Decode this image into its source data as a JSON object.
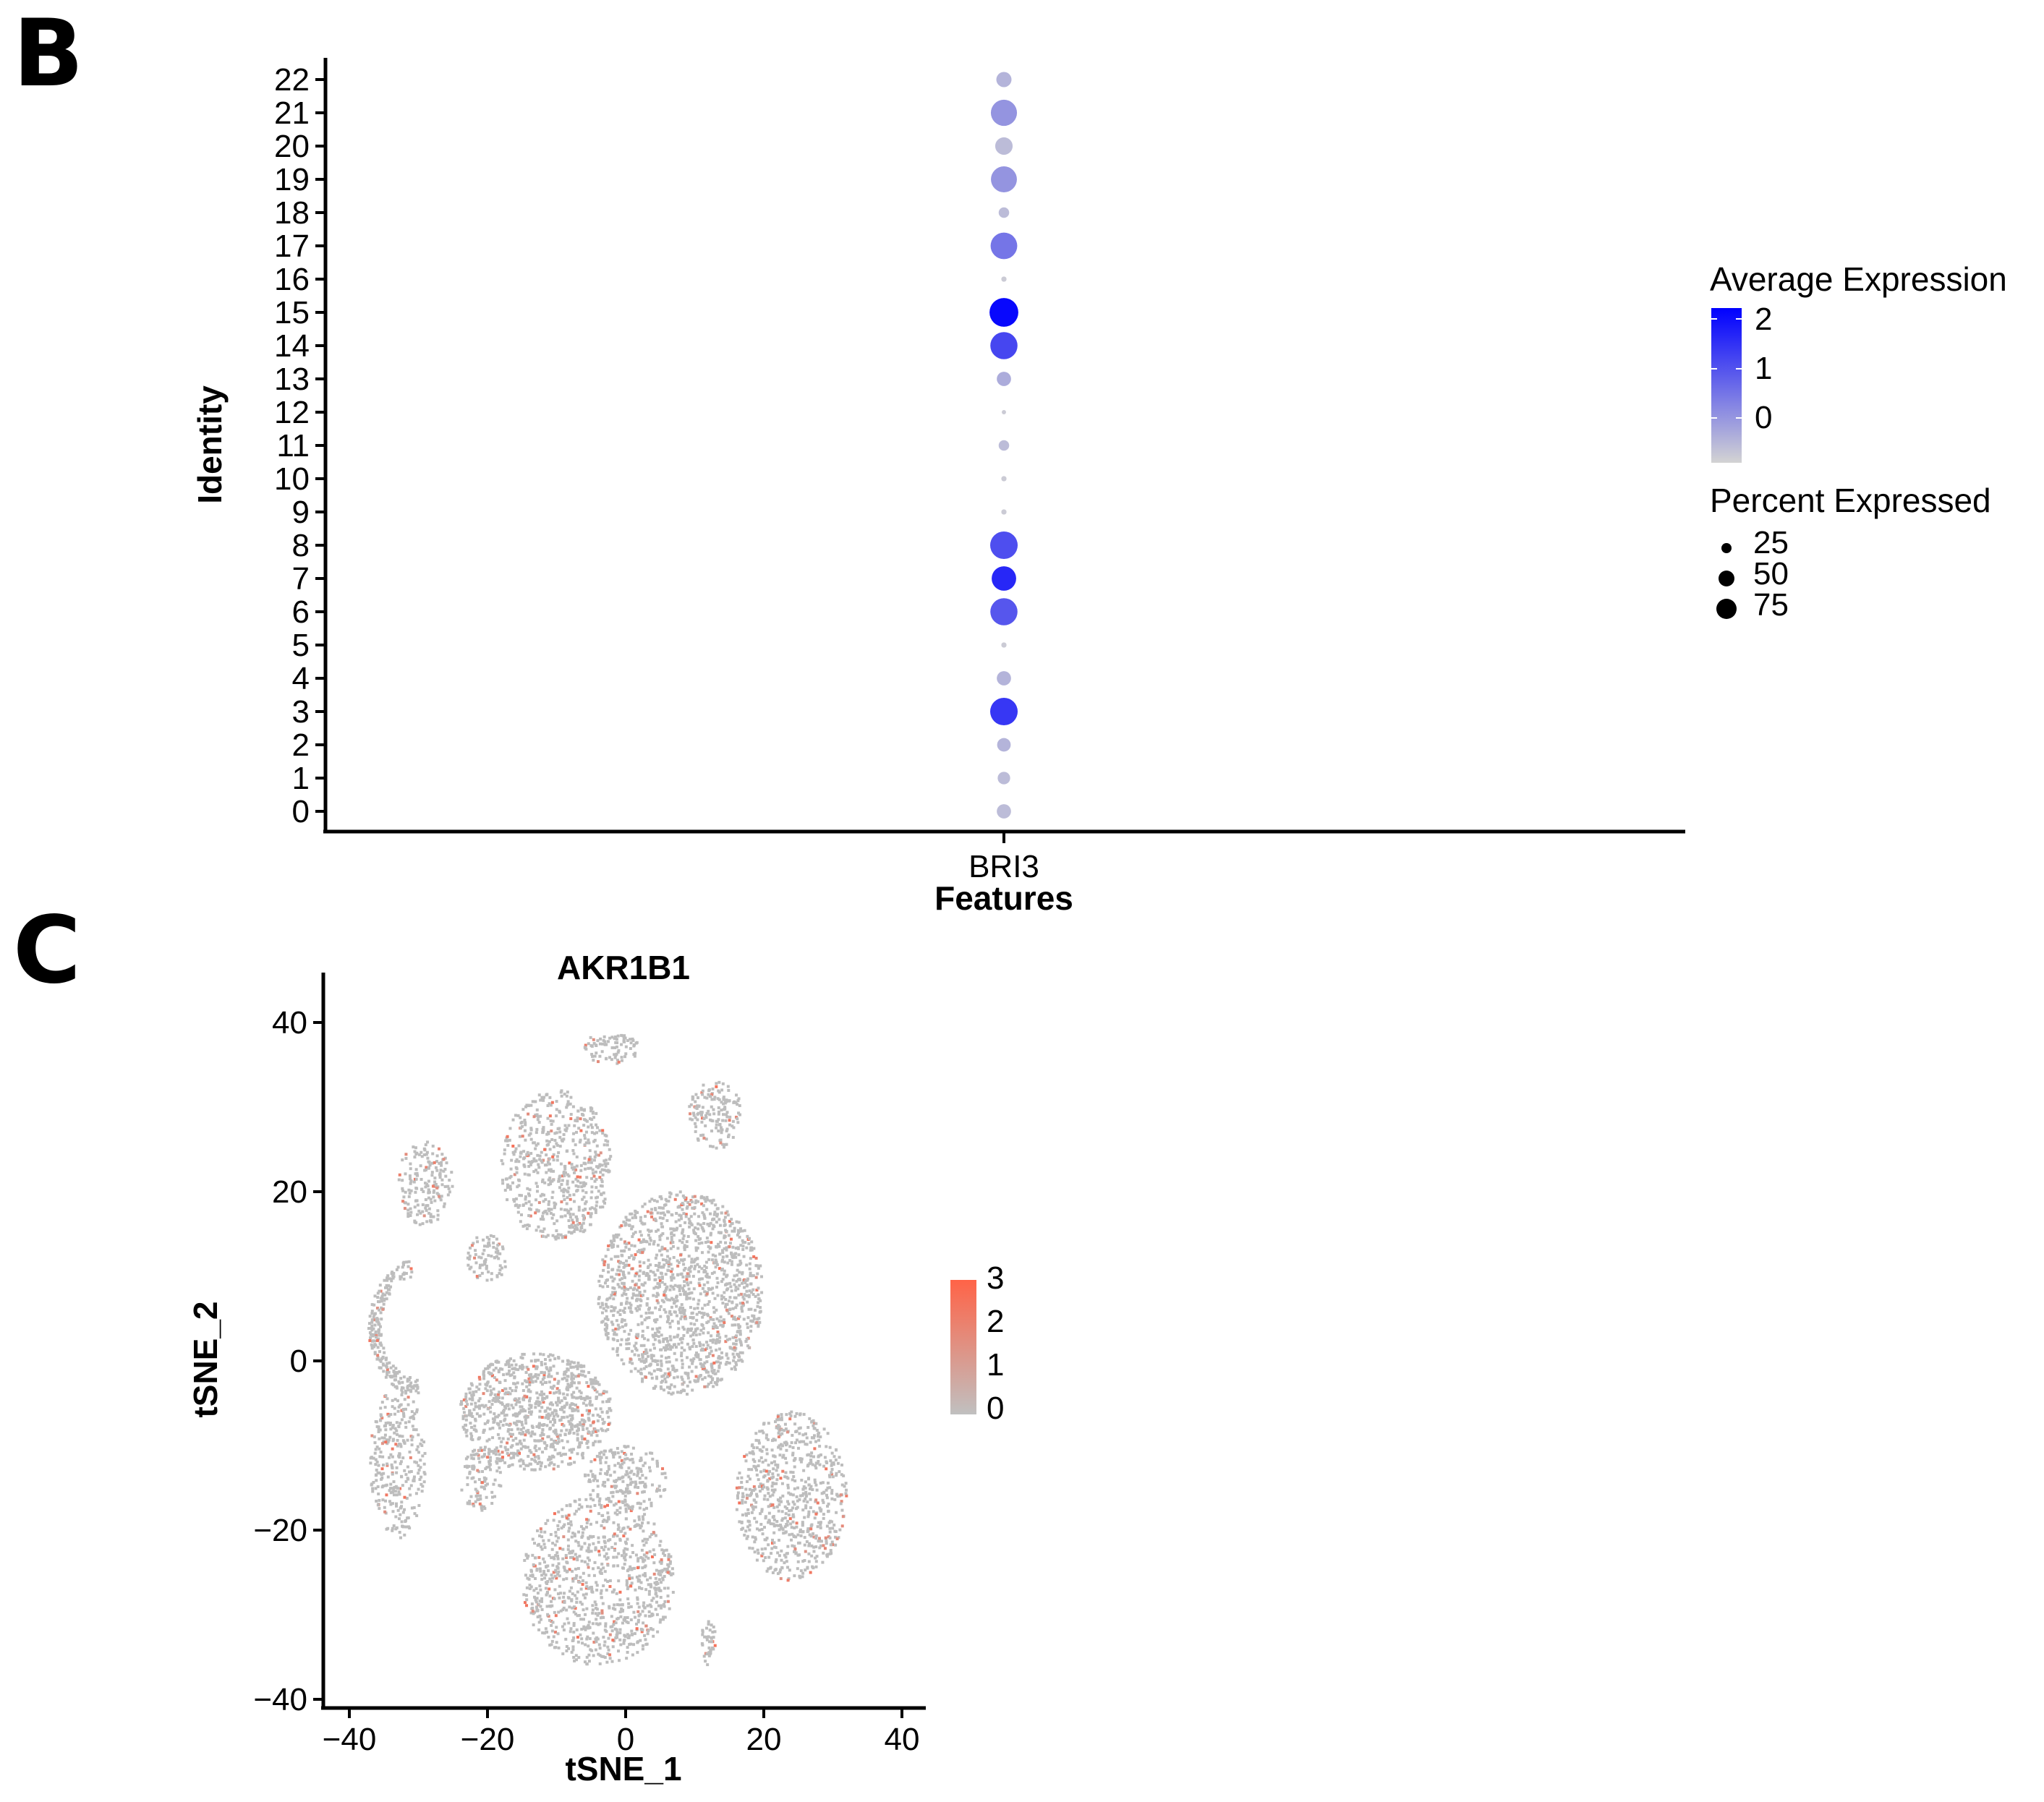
{
  "panels": {
    "b_label": "B",
    "c_label": "C"
  },
  "chart_data": [
    {
      "type": "dot",
      "panel": "B",
      "xlabel": "Features",
      "ylabel": "Identity",
      "categories": [
        "BRI3"
      ],
      "identities": [
        "0",
        "1",
        "2",
        "3",
        "4",
        "5",
        "6",
        "7",
        "8",
        "9",
        "10",
        "11",
        "12",
        "13",
        "14",
        "15",
        "16",
        "17",
        "18",
        "19",
        "20",
        "21",
        "22"
      ],
      "points": [
        {
          "identity": "0",
          "avg_exp": -0.3,
          "pct": 22
        },
        {
          "identity": "1",
          "avg_exp": -0.3,
          "pct": 17
        },
        {
          "identity": "2",
          "avg_exp": -0.2,
          "pct": 20
        },
        {
          "identity": "3",
          "avg_exp": 1.4,
          "pct": 82
        },
        {
          "identity": "4",
          "avg_exp": -0.2,
          "pct": 22
        },
        {
          "identity": "5",
          "avg_exp": -0.5,
          "pct": 3
        },
        {
          "identity": "6",
          "avg_exp": 1.0,
          "pct": 80
        },
        {
          "identity": "7",
          "avg_exp": 1.6,
          "pct": 65
        },
        {
          "identity": "8",
          "avg_exp": 1.1,
          "pct": 82
        },
        {
          "identity": "9",
          "avg_exp": -0.5,
          "pct": 3
        },
        {
          "identity": "10",
          "avg_exp": -0.5,
          "pct": 3
        },
        {
          "identity": "11",
          "avg_exp": -0.3,
          "pct": 12
        },
        {
          "identity": "12",
          "avg_exp": -0.5,
          "pct": 2
        },
        {
          "identity": "13",
          "avg_exp": -0.1,
          "pct": 22
        },
        {
          "identity": "14",
          "avg_exp": 1.2,
          "pct": 80
        },
        {
          "identity": "15",
          "avg_exp": 2.0,
          "pct": 90
        },
        {
          "identity": "16",
          "avg_exp": -0.5,
          "pct": 3
        },
        {
          "identity": "17",
          "avg_exp": 0.6,
          "pct": 77
        },
        {
          "identity": "18",
          "avg_exp": -0.3,
          "pct": 12
        },
        {
          "identity": "19",
          "avg_exp": 0.2,
          "pct": 73
        },
        {
          "identity": "20",
          "avg_exp": -0.3,
          "pct": 33
        },
        {
          "identity": "21",
          "avg_exp": 0.2,
          "pct": 74
        },
        {
          "identity": "22",
          "avg_exp": -0.2,
          "pct": 25
        }
      ],
      "color_legend": {
        "title": "Average Expression",
        "ticks": [
          "2",
          "1",
          "0"
        ],
        "range": [
          -0.6,
          2.1
        ],
        "low_color": "#d3d3d3",
        "high_color": "#0000ff"
      },
      "size_legend": {
        "title": "Percent Expressed",
        "entries": [
          "25",
          "50",
          "75"
        ]
      }
    },
    {
      "type": "scatter",
      "panel": "C",
      "title": "AKR1B1",
      "xlabel": "tSNE_1",
      "ylabel": "tSNE_2",
      "xticks": [
        "−40",
        "−20",
        "0",
        "20",
        "40"
      ],
      "yticks": [
        "40",
        "20",
        "0",
        "−20",
        "−40"
      ],
      "xlim": [
        -44,
        44
      ],
      "ylim": [
        -41,
        46
      ],
      "clusters": [
        {
          "cx": 8,
          "cy": 8,
          "rx": 12,
          "ry": 12,
          "n": 1500
        },
        {
          "cx": -13,
          "cy": -6,
          "rx": 11,
          "ry": 7,
          "n": 900
        },
        {
          "cx": -4,
          "cy": -26,
          "rx": 11,
          "ry": 10,
          "n": 900
        },
        {
          "cx": 24,
          "cy": -16,
          "rx": 8,
          "ry": 10,
          "n": 700
        },
        {
          "cx": -10,
          "cy": 23,
          "rx": 8,
          "ry": 9,
          "n": 600
        },
        {
          "cx": 13,
          "cy": 29,
          "rx": 4,
          "ry": 4,
          "n": 150
        },
        {
          "cx": -33,
          "cy": -12,
          "rx": 4,
          "ry": 9,
          "n": 300
        },
        {
          "cx": -29,
          "cy": 21,
          "rx": 4,
          "ry": 5,
          "n": 180
        },
        {
          "cx": -2,
          "cy": 37,
          "rx": 4,
          "ry": 2,
          "n": 80
        },
        {
          "cx": 0,
          "cy": -14,
          "rx": 6,
          "ry": 4,
          "n": 200
        },
        {
          "cx": -20,
          "cy": 12,
          "rx": 3,
          "ry": 3,
          "n": 80
        },
        {
          "cx": -21,
          "cy": -14,
          "rx": 3,
          "ry": 4,
          "n": 100
        },
        {
          "cx": 12,
          "cy": -33,
          "rx": 1,
          "ry": 3,
          "n": 40
        }
      ],
      "arc_cluster": {
        "cx": -30,
        "cy": 4,
        "r": 7,
        "n": 220
      },
      "color_legend": {
        "ticks": [
          "3",
          "2",
          "1",
          "0"
        ],
        "range": [
          0,
          3
        ],
        "low_color": "#c0c0c0",
        "high_color": "#ff6347"
      }
    }
  ]
}
